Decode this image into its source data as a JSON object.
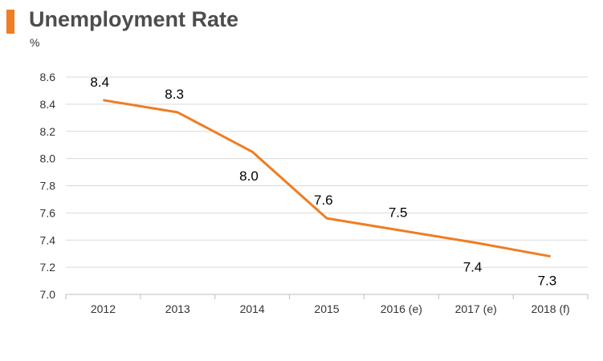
{
  "header": {
    "title": "Unemployment Rate",
    "unit": "%"
  },
  "colors": {
    "accent": "#ef7d22",
    "line": "#ef7d22",
    "grid": "#d9d9d9"
  },
  "chart_data": {
    "type": "line",
    "title": "Unemployment Rate",
    "ylabel": "%",
    "xlabel": "",
    "categories": [
      "2012",
      "2013",
      "2014",
      "2015",
      "2016 (e)",
      "2017 (e)",
      "2018 (f)"
    ],
    "values": [
      8.43,
      8.34,
      8.05,
      7.56,
      7.47,
      7.38,
      7.28
    ],
    "data_labels": [
      "8.4",
      "8.3",
      "8.0",
      "7.6",
      "7.5",
      "7.4",
      "7.3"
    ],
    "ylim": [
      7.0,
      8.6
    ],
    "yticks": [
      "7.0",
      "7.2",
      "7.4",
      "7.6",
      "7.8",
      "8.0",
      "8.2",
      "8.4",
      "8.6"
    ],
    "grid": true,
    "legend": "none"
  }
}
